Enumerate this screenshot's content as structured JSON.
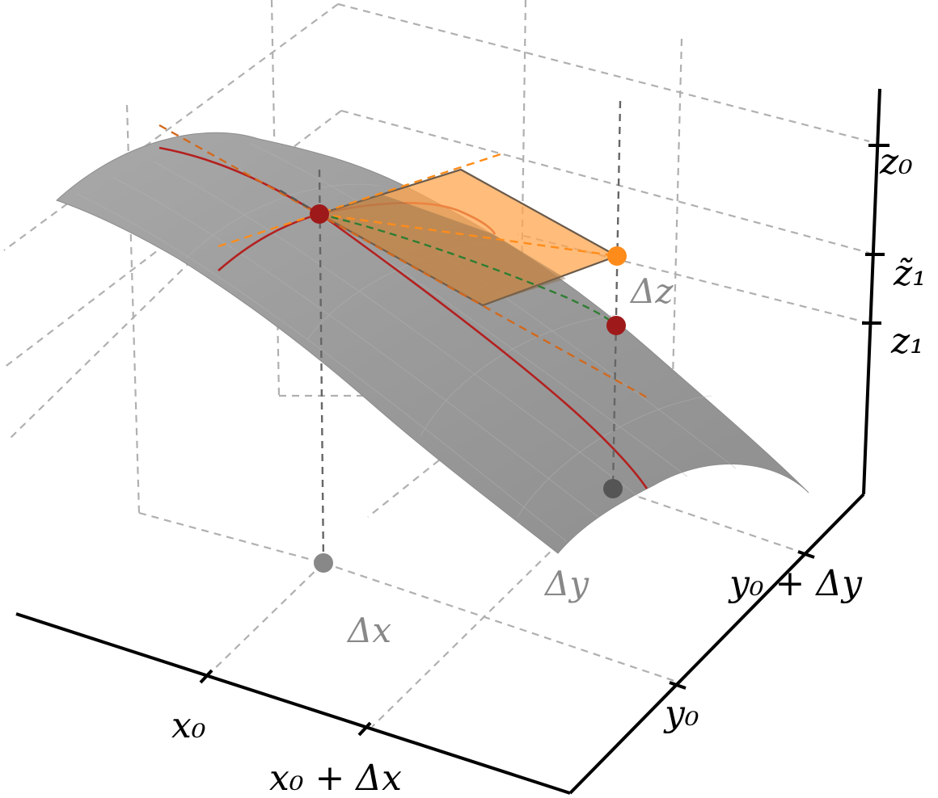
{
  "labels": {
    "x0": "x₀",
    "x0_dx": "x₀ + Δx",
    "y0": "y₀",
    "y0_dy": "y₀ + Δy",
    "z0": "z₀",
    "z1_tilde": "z̃₁",
    "z1": "z₁",
    "dx": "Δx",
    "dy": "Δy",
    "dz": "Δz"
  },
  "colors": {
    "surface": "#9a9a9a",
    "surface_edge": "#8c8c8c",
    "tangent_plane": "#ffa64d",
    "tangent_line": "#ff8c1a",
    "curve": "#b3201f",
    "point": "#9e1a1a",
    "approx_point": "#ff8c1a",
    "path": "#2e7d32",
    "guide": "#b0b0b0",
    "guide_dark": "#666666",
    "axis": "#000000",
    "projection_point": "#888888"
  }
}
